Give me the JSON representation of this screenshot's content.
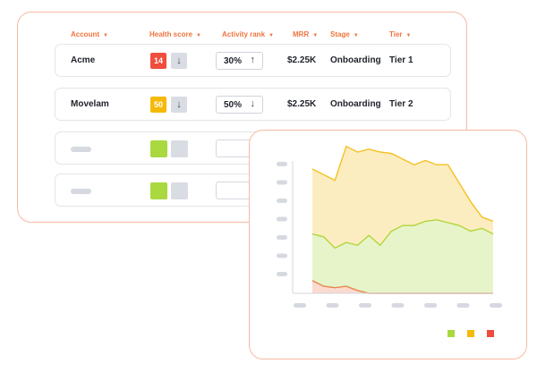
{
  "table": {
    "columns": [
      {
        "key": "account",
        "label": "Account"
      },
      {
        "key": "health",
        "label": "Health score"
      },
      {
        "key": "activity",
        "label": "Activity rank"
      },
      {
        "key": "mrr",
        "label": "MRR"
      },
      {
        "key": "stage",
        "label": "Stage"
      },
      {
        "key": "tier",
        "label": "Tier"
      }
    ],
    "rows": [
      {
        "account": "Acme",
        "health": "14",
        "health_color": "#f04d3d",
        "health_arrow": "↓",
        "activity": "30%",
        "activity_arrow": "↑",
        "mrr": "$2.25K",
        "stage": "Onboarding",
        "tier": "Tier 1"
      },
      {
        "account": "Movelam",
        "health": "50",
        "health_color": "#f5b90a",
        "health_arrow": "↓",
        "activity": "50%",
        "activity_arrow": "↓",
        "mrr": "$2.25K",
        "stage": "Onboarding",
        "tier": "Tier 2"
      }
    ],
    "caret_icon": "caret-down-icon",
    "accent": "#f0743e"
  },
  "chart_data": {
    "type": "area",
    "stacked": true,
    "x": [
      1,
      2,
      3,
      4,
      5,
      6,
      7,
      8,
      9,
      10,
      11,
      12,
      13,
      14,
      15,
      16,
      17
    ],
    "series": [
      {
        "name": "red",
        "color": "#f07a52",
        "values": [
          9,
          5,
          4,
          5,
          2,
          0,
          0,
          0,
          0,
          0,
          0,
          0,
          0,
          0,
          0,
          0,
          0
        ]
      },
      {
        "name": "green",
        "color": "#a9d83f",
        "values": [
          33,
          35,
          28,
          31,
          32,
          41,
          34,
          44,
          48,
          48,
          51,
          52,
          50,
          48,
          44,
          46,
          42
        ]
      },
      {
        "name": "yellow",
        "color": "#f5c021",
        "values": [
          46,
          44,
          48,
          68,
          66,
          61,
          66,
          55,
          47,
          43,
          43,
          39,
          41,
          30,
          21,
          8,
          9
        ]
      }
    ],
    "ylim": [
      0,
      100
    ],
    "legend": {
      "position": "bottom-right",
      "colors": [
        "#a9d83f",
        "#f5b90a",
        "#f04d3d"
      ]
    }
  }
}
